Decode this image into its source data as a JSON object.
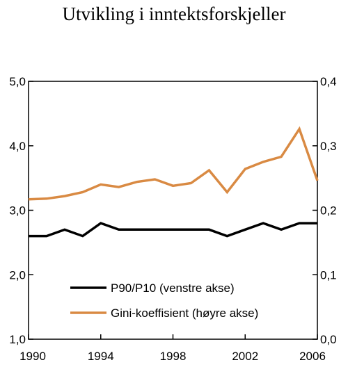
{
  "chart_data": {
    "type": "line",
    "title": "Utvikling i inntektsforskjeller",
    "x": [
      1990,
      1991,
      1992,
      1993,
      1994,
      1995,
      1996,
      1997,
      1998,
      1999,
      2000,
      2001,
      2002,
      2003,
      2004,
      2005,
      2006
    ],
    "xlim": [
      1990,
      2006
    ],
    "x_ticks": [
      1990,
      1994,
      1998,
      2002,
      2006
    ],
    "x_tick_labels": [
      "1990",
      "1994",
      "1998",
      "2002",
      "2006"
    ],
    "ylim_left": [
      1.0,
      5.0
    ],
    "y_ticks_left": [
      "1,0",
      "2,0",
      "3,0",
      "4,0",
      "5,0"
    ],
    "ylim_right": [
      0.0,
      0.4
    ],
    "y_ticks_right": [
      "0,0",
      "0,1",
      "0,2",
      "0,3",
      "0,4"
    ],
    "grid": false,
    "legend_position": "lower-center",
    "series": [
      {
        "name": "P90/P10 (venstre akse)",
        "axis": "left",
        "color": "#000000",
        "values": [
          2.6,
          2.6,
          2.7,
          2.6,
          2.8,
          2.7,
          2.7,
          2.7,
          2.7,
          2.7,
          2.7,
          2.6,
          2.7,
          2.8,
          2.7,
          2.8,
          2.8
        ]
      },
      {
        "name": "Gini-koeffisient (høyre akse)",
        "axis": "right",
        "color": "#d98a43",
        "values": [
          0.217,
          0.218,
          0.222,
          0.228,
          0.24,
          0.236,
          0.244,
          0.248,
          0.238,
          0.242,
          0.262,
          0.228,
          0.264,
          0.275,
          0.283,
          0.326,
          0.246
        ]
      }
    ]
  }
}
